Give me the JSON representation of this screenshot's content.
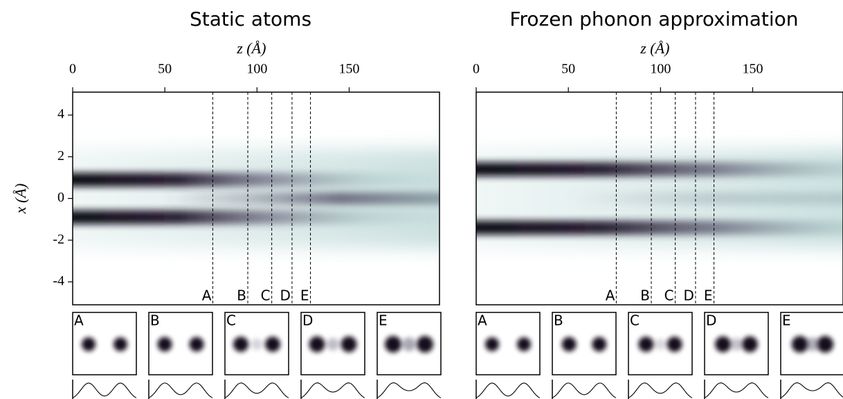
{
  "chart_data": [
    {
      "type": "heatmap",
      "title": "Static atoms",
      "xlabel": "z (Å)",
      "ylabel": "x (Å)",
      "xlim": [
        0,
        199
      ],
      "xticks": [
        0,
        50,
        100,
        150
      ],
      "ylim": [
        -5.1,
        5.1
      ],
      "yticks": [
        -4,
        -2,
        0,
        2,
        4
      ],
      "markers": [
        {
          "label": "A",
          "value": 76
        },
        {
          "label": "B",
          "value": 95
        },
        {
          "label": "C",
          "value": 108
        },
        {
          "label": "D",
          "value": 119
        },
        {
          "label": "E",
          "value": 129
        }
      ]
    },
    {
      "type": "heatmap",
      "title": "Frozen phonon approximation",
      "xlabel": "z (Å)",
      "xlim": [
        0,
        199
      ],
      "xticks": [
        0,
        50,
        100,
        150
      ],
      "ylim": [
        -5.1,
        5.1
      ],
      "markers": [
        {
          "label": "A",
          "value": 76
        },
        {
          "label": "B",
          "value": 95
        },
        {
          "label": "C",
          "value": 108
        },
        {
          "label": "D",
          "value": 119
        },
        {
          "label": "E",
          "value": 129
        }
      ]
    }
  ]
}
